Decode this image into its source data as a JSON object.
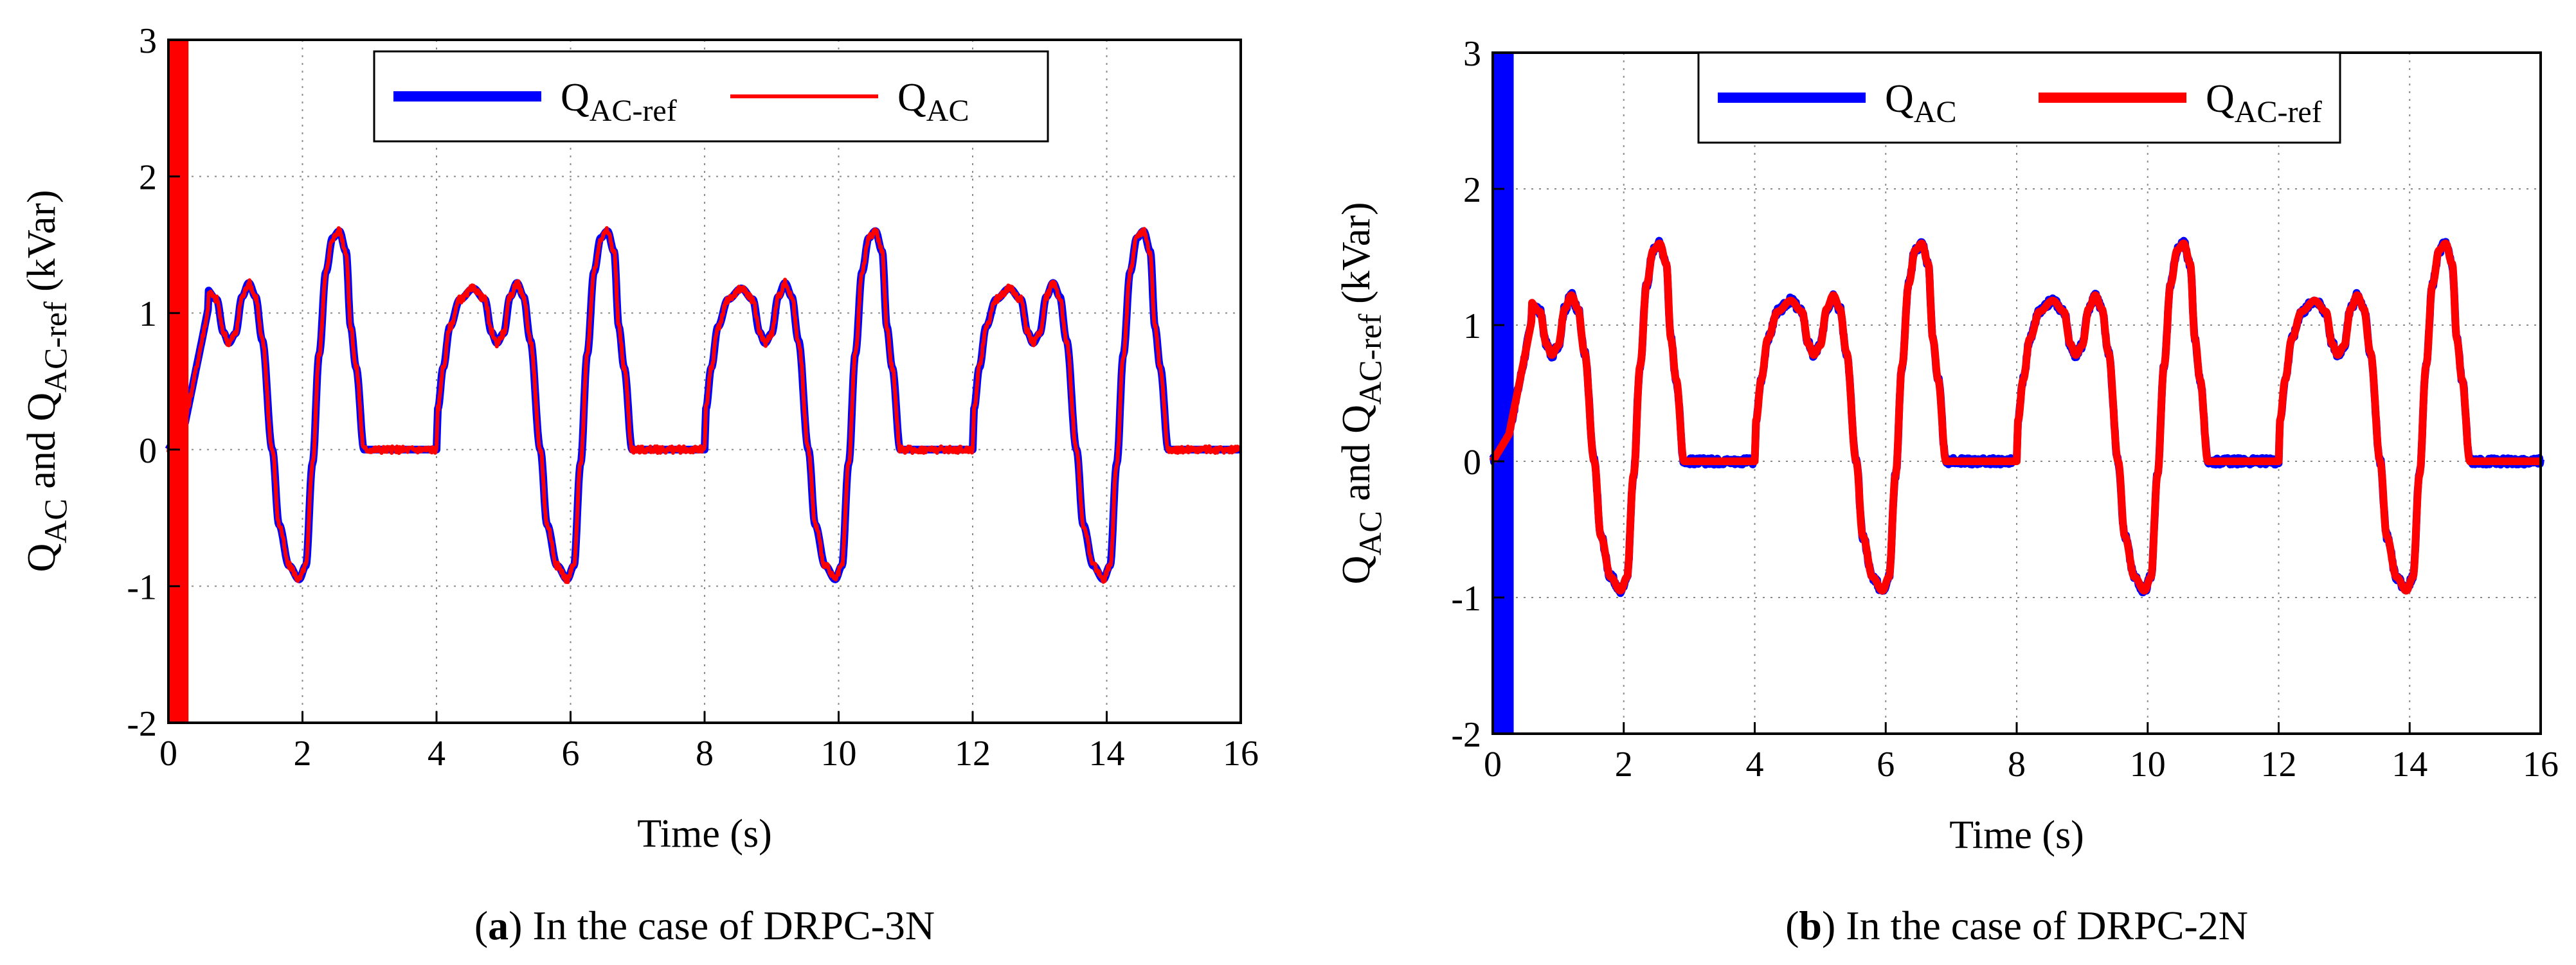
{
  "chart_data": [
    {
      "id": "a",
      "type": "line",
      "title": "",
      "xlabel": "Time (s)",
      "ylabel": {
        "parts": [
          [
            "Q",
            ""
          ],
          [
            "AC",
            "sub"
          ],
          [
            " and Q",
            ""
          ],
          [
            "AC-ref",
            "sub"
          ],
          [
            " (kVar)",
            ""
          ]
        ]
      },
      "xlim": [
        0,
        16
      ],
      "ylim": [
        -2,
        3
      ],
      "xticks": [
        0,
        2,
        4,
        6,
        8,
        10,
        12,
        14,
        16
      ],
      "yticks": [
        -2,
        -1,
        0,
        1,
        2,
        3
      ],
      "grid": true,
      "legend_position": "top-center",
      "legend": [
        {
          "main": "Q",
          "sub": "AC-ref",
          "color": "#0000ff",
          "width": "thick"
        },
        {
          "main": "Q",
          "sub": "AC",
          "color": "#ff0000",
          "width": "thin"
        }
      ],
      "series": [
        {
          "name": "Q_AC-ref",
          "color": "#0000ff",
          "line": "thick",
          "profile": "reference"
        },
        {
          "name": "Q_AC",
          "color": "#ff0000",
          "line": "thin",
          "profile": "measured",
          "startup_spike": {
            "t": [
              0.0,
              0.28
            ],
            "range": [
              -2,
              3
            ]
          }
        }
      ],
      "caption": {
        "letter": "a",
        "text": ") In the case of DRPC-3N"
      }
    },
    {
      "id": "b",
      "type": "line",
      "title": "",
      "xlabel": "Time (s)",
      "ylabel": {
        "parts": [
          [
            "Q",
            ""
          ],
          [
            "AC",
            "sub"
          ],
          [
            " and Q",
            ""
          ],
          [
            "AC-ref",
            "sub"
          ],
          [
            " (kVar)",
            ""
          ]
        ]
      },
      "xlim": [
        0,
        16
      ],
      "ylim": [
        -2,
        3
      ],
      "xticks": [
        0,
        2,
        4,
        6,
        8,
        10,
        12,
        14,
        16
      ],
      "yticks": [
        -2,
        -1,
        0,
        1,
        2,
        3
      ],
      "grid": true,
      "legend_position": "top-center",
      "legend": [
        {
          "main": "Q",
          "sub": "AC",
          "color": "#0000ff",
          "width": "thick"
        },
        {
          "main": "Q",
          "sub": "AC-ref",
          "color": "#ff0000",
          "width": "thick"
        }
      ],
      "series": [
        {
          "name": "Q_AC",
          "color": "#0000ff",
          "line": "thick",
          "profile": "measured",
          "startup_spike": {
            "t": [
              0.0,
              0.3
            ],
            "range": [
              -2,
              3
            ]
          }
        },
        {
          "name": "Q_AC-ref",
          "color": "#ff0000",
          "line": "thick",
          "profile": "reference"
        }
      ],
      "caption": {
        "letter": "b",
        "text": ") In the case of DRPC-2N"
      }
    }
  ],
  "waveform": {
    "period_s": 4,
    "cycle_points": [
      [
        0.0,
        0.0
      ],
      [
        0.02,
        0.3
      ],
      [
        0.1,
        0.6
      ],
      [
        0.2,
        0.9
      ],
      [
        0.35,
        1.1
      ],
      [
        0.55,
        1.18
      ],
      [
        0.72,
        1.1
      ],
      [
        0.82,
        0.86
      ],
      [
        0.9,
        0.78
      ],
      [
        1.0,
        0.85
      ],
      [
        1.1,
        1.12
      ],
      [
        1.2,
        1.22
      ],
      [
        1.3,
        1.12
      ],
      [
        1.4,
        0.8
      ],
      [
        1.55,
        0.0
      ],
      [
        1.65,
        -0.55
      ],
      [
        1.8,
        -0.85
      ],
      [
        1.95,
        -0.95
      ],
      [
        2.05,
        -0.85
      ],
      [
        2.15,
        -0.1
      ],
      [
        2.25,
        0.7
      ],
      [
        2.35,
        1.3
      ],
      [
        2.45,
        1.55
      ],
      [
        2.55,
        1.6
      ],
      [
        2.65,
        1.45
      ],
      [
        2.72,
        0.9
      ],
      [
        2.8,
        0.6
      ],
      [
        2.92,
        0.0
      ],
      [
        4.0,
        0.0
      ]
    ],
    "startup_rise": [
      [
        0.0,
        0.0
      ],
      [
        0.25,
        0.2
      ],
      [
        0.5,
        0.8
      ],
      [
        0.6,
        1.05
      ]
    ],
    "t_end": 16
  }
}
